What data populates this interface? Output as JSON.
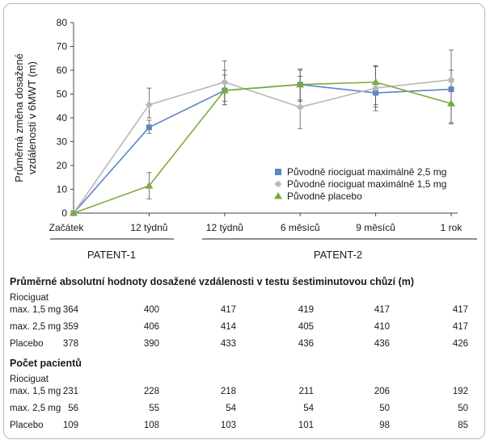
{
  "chart_data": {
    "type": "line",
    "ylabel": "Průměrná změna dosažené vzdálenosti v 6MWT (m)",
    "ylim": [
      0,
      80
    ],
    "yticks": [
      0,
      10,
      20,
      30,
      40,
      50,
      60,
      70,
      80
    ],
    "categories": [
      "Začátek",
      "12 týdnů",
      "12 týdnů",
      "6 měsíců",
      "9 měsíců",
      "1 rok"
    ],
    "groups": [
      {
        "label": "PATENT-1",
        "from": 0,
        "to": 1
      },
      {
        "label": "PATENT-2",
        "from": 2,
        "to": 5
      }
    ],
    "legend_position": "right",
    "series": [
      {
        "name": "Původně riociguat maximálně 2,5 mg",
        "color": "#5b86c2",
        "marker": "square",
        "values": [
          0,
          36,
          51.5,
          54,
          50.5,
          52
        ],
        "err_low": [
          0,
          33.5,
          45.5,
          47,
          43,
          37.5
        ],
        "err_high": [
          0,
          39,
          58,
          60,
          61.5,
          68.5
        ]
      },
      {
        "name": "Původně riociguat maximálně 1,5 mg",
        "color": "#b8b8b8",
        "marker": "diamond",
        "values": [
          0,
          45.5,
          55,
          44.5,
          52.5,
          56
        ],
        "err_low": [
          0,
          40,
          47,
          35.5,
          44.5,
          46
        ],
        "err_high": [
          0,
          52.5,
          64,
          57.5,
          61.5,
          60
        ]
      },
      {
        "name": "Původně placebo",
        "color": "#7cab3b",
        "marker": "triangle",
        "values": [
          0,
          11.5,
          51.5,
          54,
          55,
          46
        ],
        "err_low": [
          0,
          6,
          45.5,
          47.5,
          45.5,
          38
        ],
        "err_high": [
          0,
          17,
          60,
          60.5,
          62,
          55
        ]
      }
    ]
  },
  "table": {
    "section1_title": "Průměrné absolutní hodnoty dosažené vzdálenosti v testu šestiminutovou chůzí (m)",
    "section2_title": "Počet pacientů",
    "group_label": "Riociguat",
    "rows_distance": [
      {
        "label": "max. 1,5 mg",
        "values": [
          "364",
          "400",
          "417",
          "419",
          "417",
          "417"
        ]
      },
      {
        "label": "max. 2,5 mg",
        "values": [
          "359",
          "406",
          "414",
          "405",
          "410",
          "417"
        ]
      },
      {
        "label": "Placebo",
        "values": [
          "378",
          "390",
          "433",
          "436",
          "436",
          "426"
        ]
      }
    ],
    "rows_patients": [
      {
        "label": "max. 1,5 mg",
        "values": [
          "231",
          "228",
          "218",
          "211",
          "206",
          "192"
        ]
      },
      {
        "label": "max. 2,5 mg",
        "values": [
          "56",
          "55",
          "54",
          "54",
          "50",
          "50"
        ]
      },
      {
        "label": "Placebo",
        "values": [
          "109",
          "108",
          "103",
          "101",
          "98",
          "85"
        ]
      }
    ]
  }
}
